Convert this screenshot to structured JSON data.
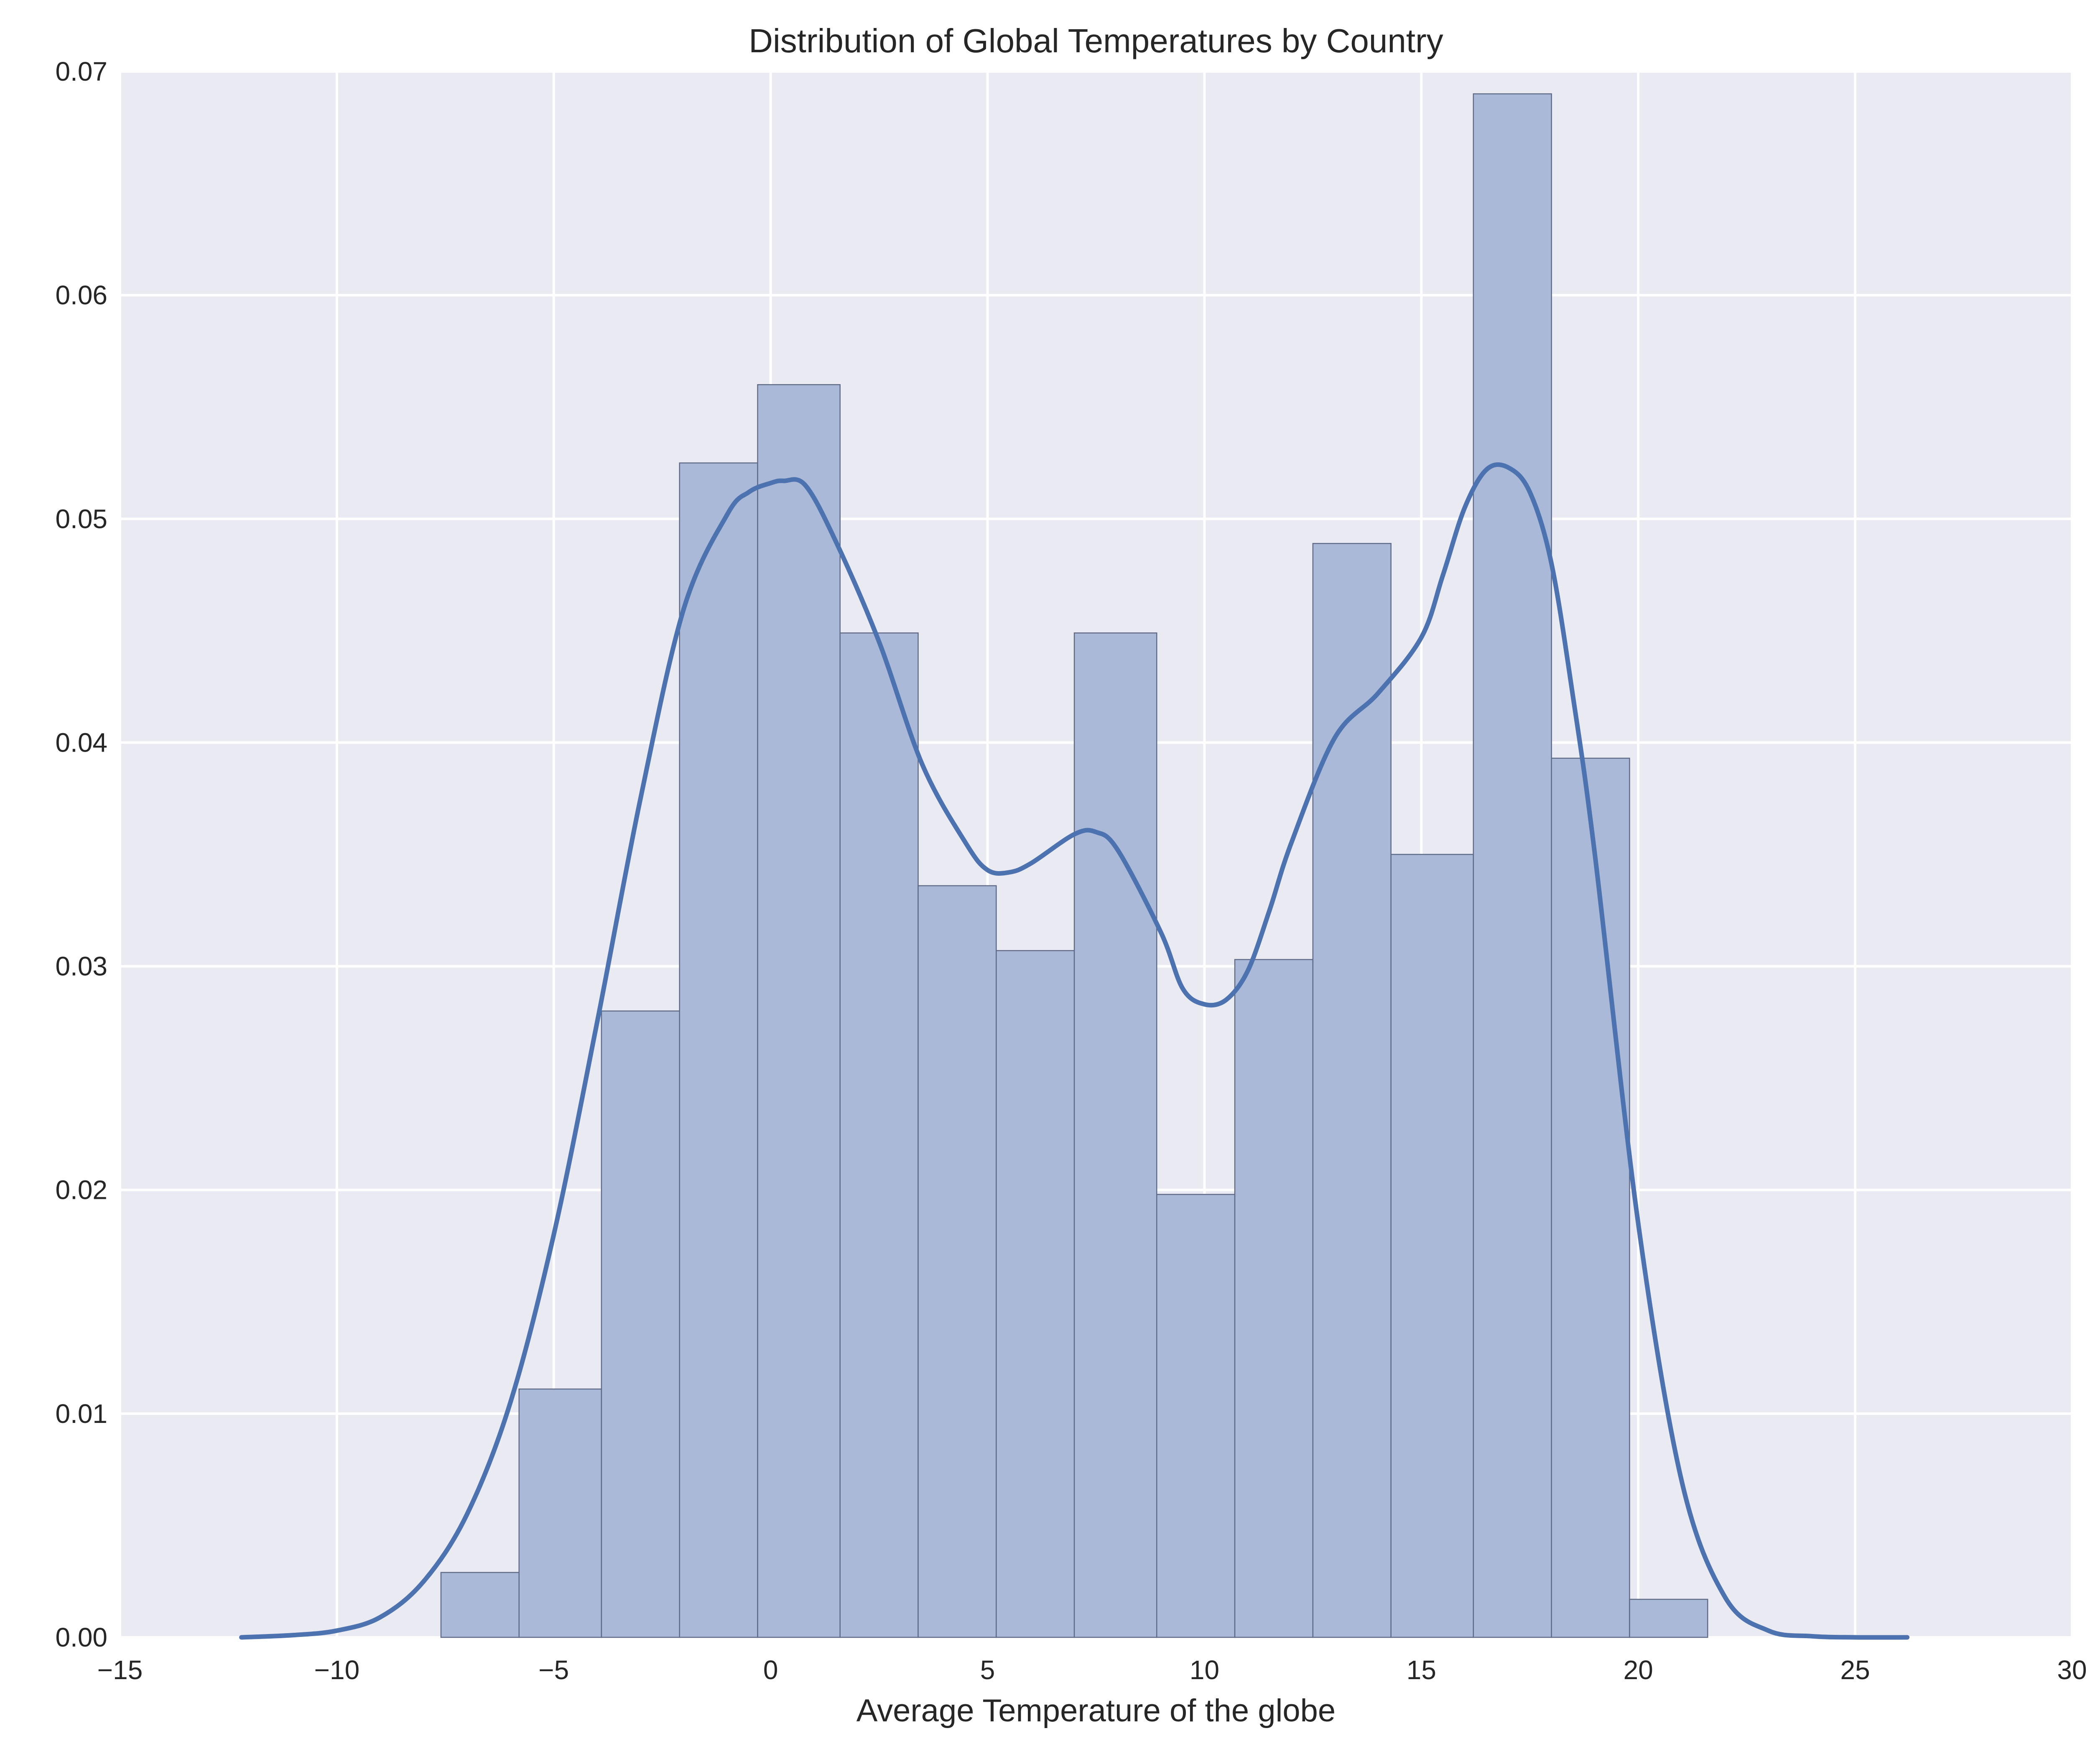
{
  "chart_data": {
    "type": "bar",
    "title": "Distribution of Global Temperatures by Country",
    "xlabel": "Average Temperature of the globe",
    "ylabel": "",
    "xlim": [
      -15,
      30
    ],
    "ylim": [
      0,
      0.07
    ],
    "xticks": [
      -15,
      -10,
      -5,
      0,
      5,
      10,
      15,
      20,
      25,
      30
    ],
    "xtick_labels": [
      "−15",
      "−10",
      "−5",
      "0",
      "5",
      "10",
      "15",
      "20",
      "25",
      "30"
    ],
    "yticks": [
      0,
      0.01,
      0.02,
      0.03,
      0.04,
      0.05,
      0.06,
      0.07
    ],
    "ytick_labels": [
      "0.00",
      "0.01",
      "0.02",
      "0.03",
      "0.04",
      "0.05",
      "0.06",
      "0.07"
    ],
    "grid": true,
    "histogram": {
      "bin_edges": [
        -7.6,
        -5.8,
        -3.9,
        -2.1,
        -0.3,
        1.6,
        3.4,
        5.2,
        7.0,
        8.9,
        10.7,
        12.5,
        14.3,
        16.2,
        18.0,
        19.8,
        21.6
      ],
      "density": [
        0.0029,
        0.0111,
        0.028,
        0.0525,
        0.056,
        0.0449,
        0.0336,
        0.0307,
        0.0449,
        0.0198,
        0.0303,
        0.0489,
        0.035,
        0.069,
        0.0393,
        0.0017
      ]
    },
    "kde": {
      "x": [
        -12.2,
        -11.0,
        -10.0,
        -9.0,
        -8.0,
        -7.0,
        -6.0,
        -5.0,
        -4.0,
        -3.0,
        -2.0,
        -1.0,
        -0.5,
        0.0,
        0.3,
        0.8,
        1.5,
        2.5,
        3.5,
        4.5,
        5.0,
        5.5,
        6.0,
        7.0,
        7.5,
        8.0,
        9.0,
        9.5,
        10.0,
        10.5,
        11.0,
        11.5,
        12.0,
        13.0,
        14.0,
        15.0,
        15.5,
        16.0,
        16.5,
        17.0,
        17.5,
        18.0,
        18.5,
        19.0,
        20.0,
        21.0,
        22.0,
        23.0,
        24.0,
        25.0,
        26.2
      ],
      "y": [
        0.0,
        0.0001,
        0.0003,
        0.0009,
        0.0025,
        0.0055,
        0.0105,
        0.018,
        0.0275,
        0.0375,
        0.046,
        0.0502,
        0.0512,
        0.0516,
        0.0517,
        0.0515,
        0.049,
        0.0445,
        0.039,
        0.0355,
        0.0343,
        0.0342,
        0.0346,
        0.0359,
        0.036,
        0.0352,
        0.0315,
        0.029,
        0.0283,
        0.0285,
        0.0298,
        0.0325,
        0.0355,
        0.0402,
        0.0422,
        0.0447,
        0.0475,
        0.0505,
        0.0522,
        0.0523,
        0.0512,
        0.048,
        0.042,
        0.035,
        0.0185,
        0.007,
        0.0018,
        0.0003,
        5e-05,
        0.0,
        0.0
      ]
    },
    "colors": {
      "background": "#eaeaf2",
      "grid": "#ffffff",
      "bar_fill": "#aab9d8",
      "bar_edge": "#5f6b86",
      "kde_line": "#4c72b0"
    }
  }
}
